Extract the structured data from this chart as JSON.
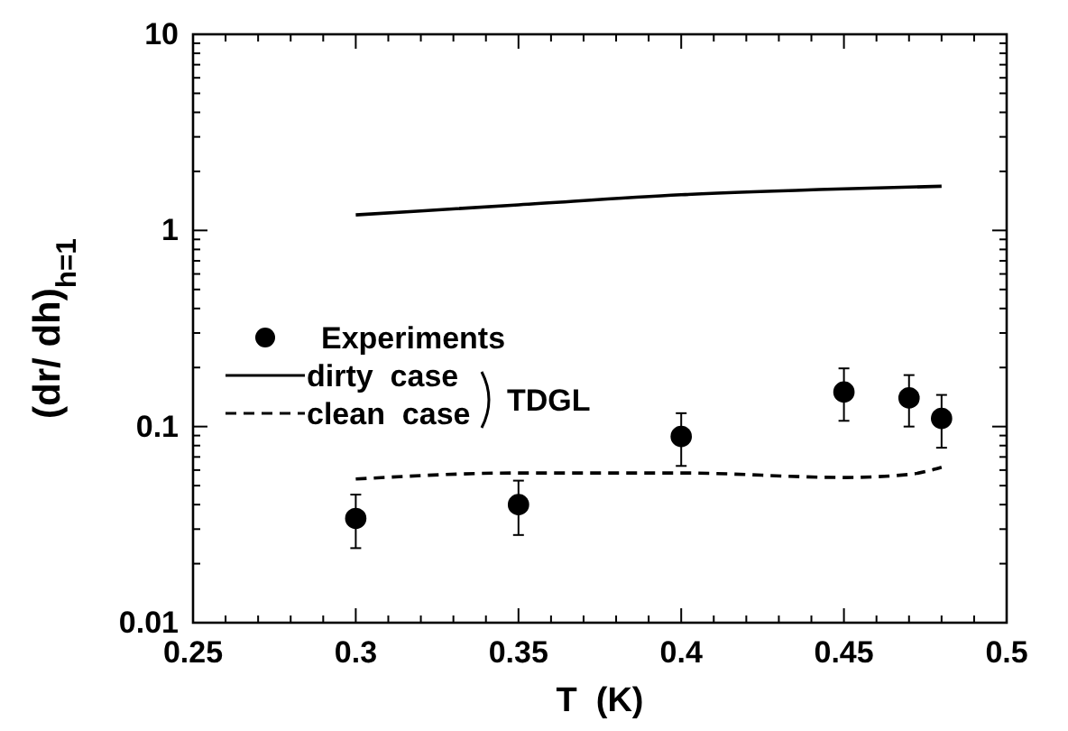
{
  "chart_data": {
    "type": "scatter",
    "xlabel": "T  (K)",
    "ylabel": "(dr/ dh)$_{h=1}$",
    "xlim": [
      0.25,
      0.5
    ],
    "xticks": [
      0.25,
      0.3,
      0.35,
      0.4,
      0.45,
      0.5
    ],
    "ylim": [
      0.01,
      10
    ],
    "yticks": [
      0.01,
      0.1,
      1,
      10
    ],
    "log": "y",
    "legend": "left",
    "grid": false,
    "annotations": [
      "TDGL"
    ],
    "series": [
      {
        "name": "Experiments",
        "color": "#000000",
        "marker": "circle",
        "x": [
          0.3,
          0.35,
          0.4,
          0.45,
          0.47,
          0.48
        ],
        "values": [
          0.034,
          0.04,
          0.089,
          0.15,
          0.14,
          0.11
        ],
        "errors": [
          [
            0.024,
            0.045
          ],
          [
            0.028,
            0.053
          ],
          [
            0.063,
            0.117
          ],
          [
            0.107,
            0.198
          ],
          [
            0.1,
            0.183
          ],
          [
            0.078,
            0.145
          ]
        ]
      },
      {
        "name": "dirty  case",
        "type": "line",
        "color": "#000000",
        "line_style": "solid",
        "x": [
          0.3,
          0.35,
          0.4,
          0.45,
          0.48
        ],
        "values": [
          1.2,
          1.35,
          1.52,
          1.63,
          1.68
        ]
      },
      {
        "name": "clean  case",
        "type": "line",
        "color": "#000000",
        "line_style": "dashed",
        "x": [
          0.3,
          0.35,
          0.4,
          0.45,
          0.47,
          0.48
        ],
        "values": [
          0.054,
          0.058,
          0.058,
          0.055,
          0.057,
          0.062
        ]
      }
    ]
  }
}
